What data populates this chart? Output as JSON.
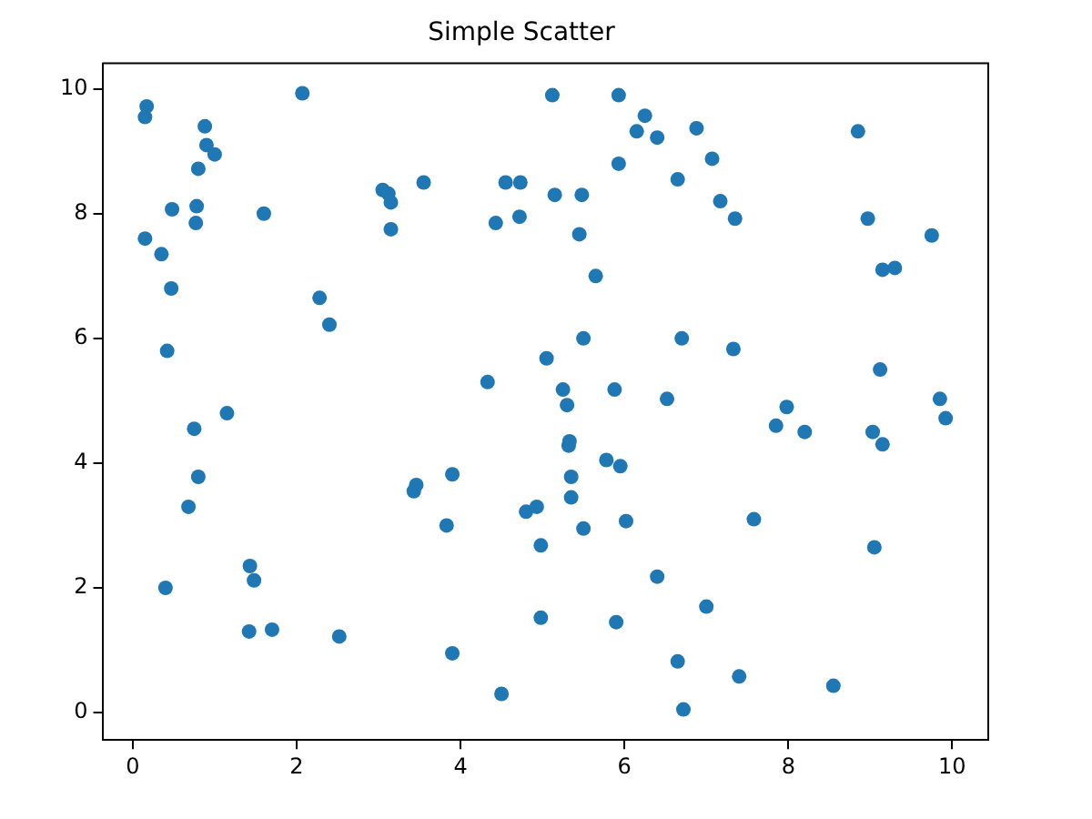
{
  "chart_data": {
    "type": "scatter",
    "title": "Simple Scatter",
    "xlim": [
      -0.37,
      10.44
    ],
    "ylim": [
      -0.44,
      10.41
    ],
    "xticks": [
      0,
      2,
      4,
      6,
      8,
      10
    ],
    "yticks": [
      0,
      2,
      4,
      6,
      8,
      10
    ],
    "grid": false,
    "marker": "circle",
    "series": [
      {
        "color": "#1f77b4",
        "x": [
          0.15,
          0.17,
          0.15,
          0.35,
          0.48,
          0.47,
          0.42,
          0.4,
          0.78,
          0.8,
          0.77,
          0.88,
          0.9,
          1.0,
          1.6,
          0.75,
          0.8,
          0.68,
          1.15,
          1.43,
          1.48,
          1.42,
          1.7,
          2.07,
          2.28,
          2.4,
          2.52,
          3.05,
          3.12,
          3.15,
          3.15,
          3.55,
          3.43,
          3.46,
          3.83,
          3.9,
          3.9,
          4.33,
          4.43,
          4.55,
          4.73,
          4.72,
          4.5,
          4.8,
          4.93,
          4.98,
          4.98,
          5.05,
          5.12,
          5.15,
          5.25,
          5.3,
          5.32,
          5.33,
          5.35,
          5.35,
          5.45,
          5.48,
          5.5,
          5.5,
          5.65,
          5.78,
          5.88,
          5.9,
          5.93,
          5.93,
          5.95,
          6.02,
          6.15,
          6.25,
          6.4,
          6.4,
          6.52,
          6.65,
          6.7,
          6.65,
          6.72,
          6.88,
          7.0,
          7.07,
          7.17,
          7.33,
          7.35,
          7.4,
          7.58,
          7.85,
          7.98,
          8.2,
          8.55,
          8.85,
          8.97,
          9.03,
          9.05,
          9.12,
          9.15,
          9.15,
          9.3,
          9.75,
          9.85,
          9.92
        ],
        "values": [
          9.55,
          9.72,
          7.6,
          7.35,
          8.07,
          6.8,
          5.8,
          2.0,
          8.12,
          8.72,
          7.85,
          9.4,
          9.1,
          8.95,
          8.0,
          4.55,
          3.78,
          3.3,
          4.8,
          2.35,
          2.12,
          1.3,
          1.33,
          9.93,
          6.65,
          6.22,
          1.22,
          8.38,
          8.32,
          8.18,
          7.75,
          8.5,
          3.55,
          3.65,
          3.0,
          3.82,
          0.95,
          5.3,
          7.85,
          8.5,
          8.5,
          7.95,
          0.3,
          3.22,
          3.3,
          2.68,
          1.52,
          5.68,
          9.9,
          8.3,
          5.18,
          4.93,
          4.28,
          4.35,
          3.78,
          3.45,
          7.67,
          8.3,
          6.0,
          2.95,
          7.0,
          4.05,
          5.18,
          1.45,
          9.9,
          8.8,
          3.95,
          3.07,
          9.32,
          9.57,
          9.22,
          2.18,
          5.03,
          8.55,
          6.0,
          0.82,
          0.05,
          9.37,
          1.7,
          8.88,
          8.2,
          5.83,
          7.92,
          0.58,
          3.1,
          4.6,
          4.9,
          4.5,
          0.43,
          9.32,
          7.92,
          4.5,
          2.65,
          5.5,
          4.3,
          7.1,
          7.13,
          7.65,
          5.03,
          4.72
        ]
      }
    ]
  }
}
